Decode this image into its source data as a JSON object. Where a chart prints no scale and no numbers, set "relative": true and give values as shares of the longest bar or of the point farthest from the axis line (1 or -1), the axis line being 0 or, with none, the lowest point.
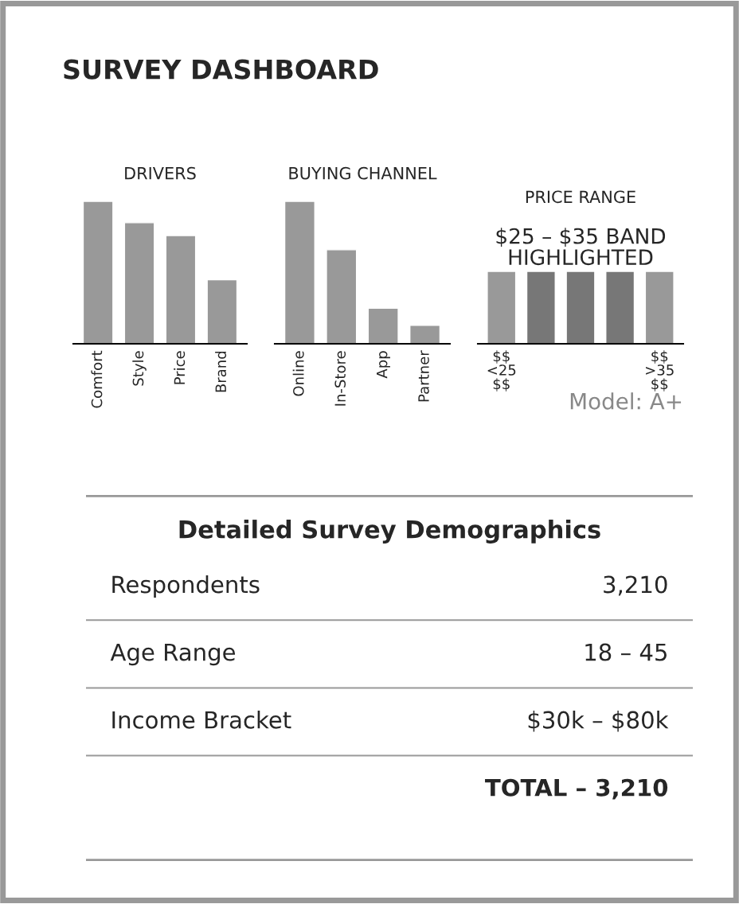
{
  "chart_data": [
    {
      "type": "other",
      "title": "SURVEY DASHBOARD"
    },
    {
      "type": "bar",
      "title": "DRIVERS",
      "relative": true,
      "categories": [
        "Comfort",
        "Style",
        "Price",
        "Brand"
      ],
      "values": [
        1,
        0.85,
        0.76,
        0.45
      ],
      "color": "#999999"
    },
    {
      "type": "bar",
      "title": "BUYING CHANNEL",
      "relative": true,
      "categories": [
        "Online",
        "In-Store",
        "App",
        "Partner"
      ],
      "values": [
        1,
        0.66,
        0.25,
        0.13
      ],
      "color": "#999999"
    },
    {
      "type": "bar",
      "title": "PRICE RANGE",
      "relative": true,
      "categories": [
        "$$\n<25\n$$",
        null,
        null,
        null,
        "$$\n>35\n$$"
      ],
      "values": [
        1,
        1,
        1,
        1,
        1
      ],
      "colors": [
        "#999999",
        "#777777",
        "#777777",
        "#777777",
        "#999999"
      ],
      "annotations": [
        "$25 – $35 BAND\nHIGHLIGHTED",
        "Model: A+"
      ]
    },
    {
      "type": "other",
      "title": "Detailed Survey Demographics",
      "annotations": [
        "Respondents",
        "3,210",
        "Age Range",
        "18 – 45",
        "Income Bracket",
        "$30k – $80k",
        "TOTAL – 3,210"
      ]
    }
  ]
}
